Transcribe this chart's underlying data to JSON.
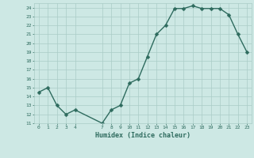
{
  "xlabel": "Humidex (Indice chaleur)",
  "x": [
    0,
    1,
    2,
    3,
    4,
    7,
    8,
    9,
    10,
    11,
    12,
    13,
    14,
    15,
    16,
    17,
    18,
    19,
    20,
    21,
    22,
    23
  ],
  "y": [
    14.5,
    15.0,
    13.0,
    12.0,
    12.5,
    11.0,
    12.5,
    13.0,
    15.5,
    16.0,
    18.5,
    21.0,
    22.0,
    23.9,
    23.9,
    24.2,
    23.9,
    23.9,
    23.9,
    23.2,
    21.0,
    19.0
  ],
  "line_color": "#2e6b5e",
  "marker_color": "#2e6b5e",
  "bg_color": "#cde8e4",
  "grid_color": "#aaccc7",
  "text_color": "#2e6b5e",
  "ylim": [
    11,
    24.5
  ],
  "xlim": [
    -0.5,
    23.5
  ],
  "yticks": [
    11,
    12,
    13,
    14,
    15,
    16,
    17,
    18,
    19,
    20,
    21,
    22,
    23,
    24
  ],
  "xticks": [
    0,
    1,
    2,
    3,
    4,
    7,
    8,
    9,
    10,
    11,
    12,
    13,
    14,
    15,
    16,
    17,
    18,
    19,
    20,
    21,
    22,
    23
  ],
  "marker_size": 2.5,
  "line_width": 1.0
}
